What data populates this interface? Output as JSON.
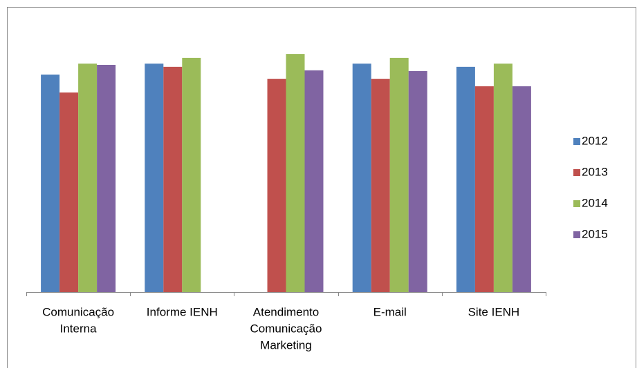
{
  "chart_data": {
    "type": "bar",
    "categories": [
      [
        "Comunicação",
        "Interna"
      ],
      [
        "Informe IENH"
      ],
      [
        "Atendimento",
        "Comunicação",
        "Marketing"
      ],
      [
        "E-mail"
      ],
      [
        "Site IENH"
      ]
    ],
    "series": [
      {
        "name": "2012",
        "color": "#4f81bd",
        "values": [
          87.5,
          91.9,
          null,
          91.9,
          90.6
        ]
      },
      {
        "name": "2013",
        "color": "#c0504d",
        "values": [
          80.3,
          90.6,
          85.8,
          85.8,
          82.8
        ]
      },
      {
        "name": "2014",
        "color": "#9bbb59",
        "values": [
          91.9,
          94.2,
          95.8,
          94.2,
          91.9
        ]
      },
      {
        "name": "2015",
        "color": "#8064a2",
        "values": [
          91.4,
          null,
          89.2,
          88.9,
          82.8
        ]
      }
    ],
    "ylim": [
      0,
      100
    ],
    "legend": "right"
  }
}
